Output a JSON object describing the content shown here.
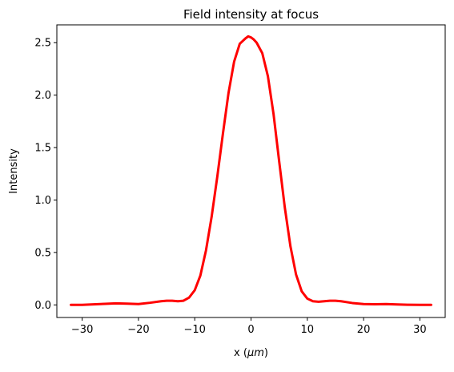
{
  "chart_data": {
    "type": "line",
    "title": "Field intensity at focus",
    "xlabel_prefix": "x (",
    "xlabel_unit": "μm",
    "xlabel_suffix": ")",
    "ylabel": "Intensity",
    "xlim": [
      -34.5,
      34.5
    ],
    "ylim": [
      -0.12,
      2.67
    ],
    "xticks": [
      -30,
      -20,
      -10,
      0,
      10,
      20,
      30
    ],
    "xtick_labels": [
      "−30",
      "−20",
      "−10",
      "0",
      "10",
      "20",
      "30"
    ],
    "yticks": [
      0.0,
      0.5,
      1.0,
      1.5,
      2.0,
      2.5
    ],
    "ytick_labels": [
      "0.0",
      "0.5",
      "1.0",
      "1.5",
      "2.0",
      "2.5"
    ],
    "grid": false,
    "legend": "none",
    "series": [
      {
        "color": "#ff0000",
        "x": [
          -32,
          -30,
          -28,
          -26,
          -24,
          -22,
          -20,
          -18,
          -16,
          -15,
          -14,
          -13,
          -12,
          -11,
          -10,
          -9,
          -8,
          -7,
          -6,
          -5,
          -4,
          -3,
          -2,
          -1,
          -0.5,
          0,
          0.5,
          1,
          2,
          3,
          4,
          5,
          6,
          7,
          8,
          9,
          10,
          11,
          12,
          13,
          14,
          15,
          16,
          18,
          20,
          22,
          24,
          26,
          28,
          30,
          32
        ],
        "y": [
          0.0,
          0.0,
          0.005,
          0.01,
          0.015,
          0.012,
          0.008,
          0.02,
          0.035,
          0.04,
          0.04,
          0.035,
          0.04,
          0.07,
          0.14,
          0.28,
          0.52,
          0.84,
          1.22,
          1.63,
          2.02,
          2.32,
          2.49,
          2.54,
          2.56,
          2.55,
          2.53,
          2.5,
          2.4,
          2.18,
          1.82,
          1.37,
          0.93,
          0.56,
          0.29,
          0.13,
          0.06,
          0.035,
          0.03,
          0.035,
          0.04,
          0.04,
          0.035,
          0.018,
          0.008,
          0.006,
          0.008,
          0.004,
          0.001,
          0.0,
          0.0
        ]
      }
    ]
  }
}
